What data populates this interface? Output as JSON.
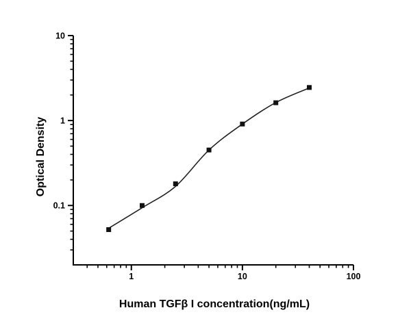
{
  "figure": {
    "background_color": "#ffffff",
    "description": "ELISA standard curve, log-log scatter plot with fitted line and square markers"
  },
  "chart_data": {
    "type": "scatter",
    "title": "",
    "xlabel": "Human TGFβ I concentration(ng/mL)",
    "ylabel": "Optical Density",
    "xscale": "log",
    "yscale": "log",
    "xlim": [
      0.3,
      100
    ],
    "ylim": [
      0.02,
      10
    ],
    "x": [
      0.625,
      1.25,
      2.5,
      5,
      10,
      20,
      40
    ],
    "y": [
      0.052,
      0.1,
      0.18,
      0.45,
      0.91,
      1.62,
      2.45
    ],
    "fit_y": [
      0.054,
      0.094,
      0.168,
      0.45,
      0.91,
      1.63,
      2.42
    ],
    "x_major_ticks": [
      1,
      10,
      100
    ],
    "x_major_labels": [
      "1",
      "10",
      "100"
    ],
    "y_major_ticks": [
      0.1,
      1,
      10
    ],
    "y_major_labels": [
      "0.1",
      "1",
      "10"
    ],
    "marker": "filled-square",
    "curve": "smooth-fit-line",
    "grid": false,
    "legend": null,
    "colors": {
      "axis": "#000000",
      "marker": "#111111",
      "curve": "#222222",
      "background": "#ffffff"
    }
  }
}
